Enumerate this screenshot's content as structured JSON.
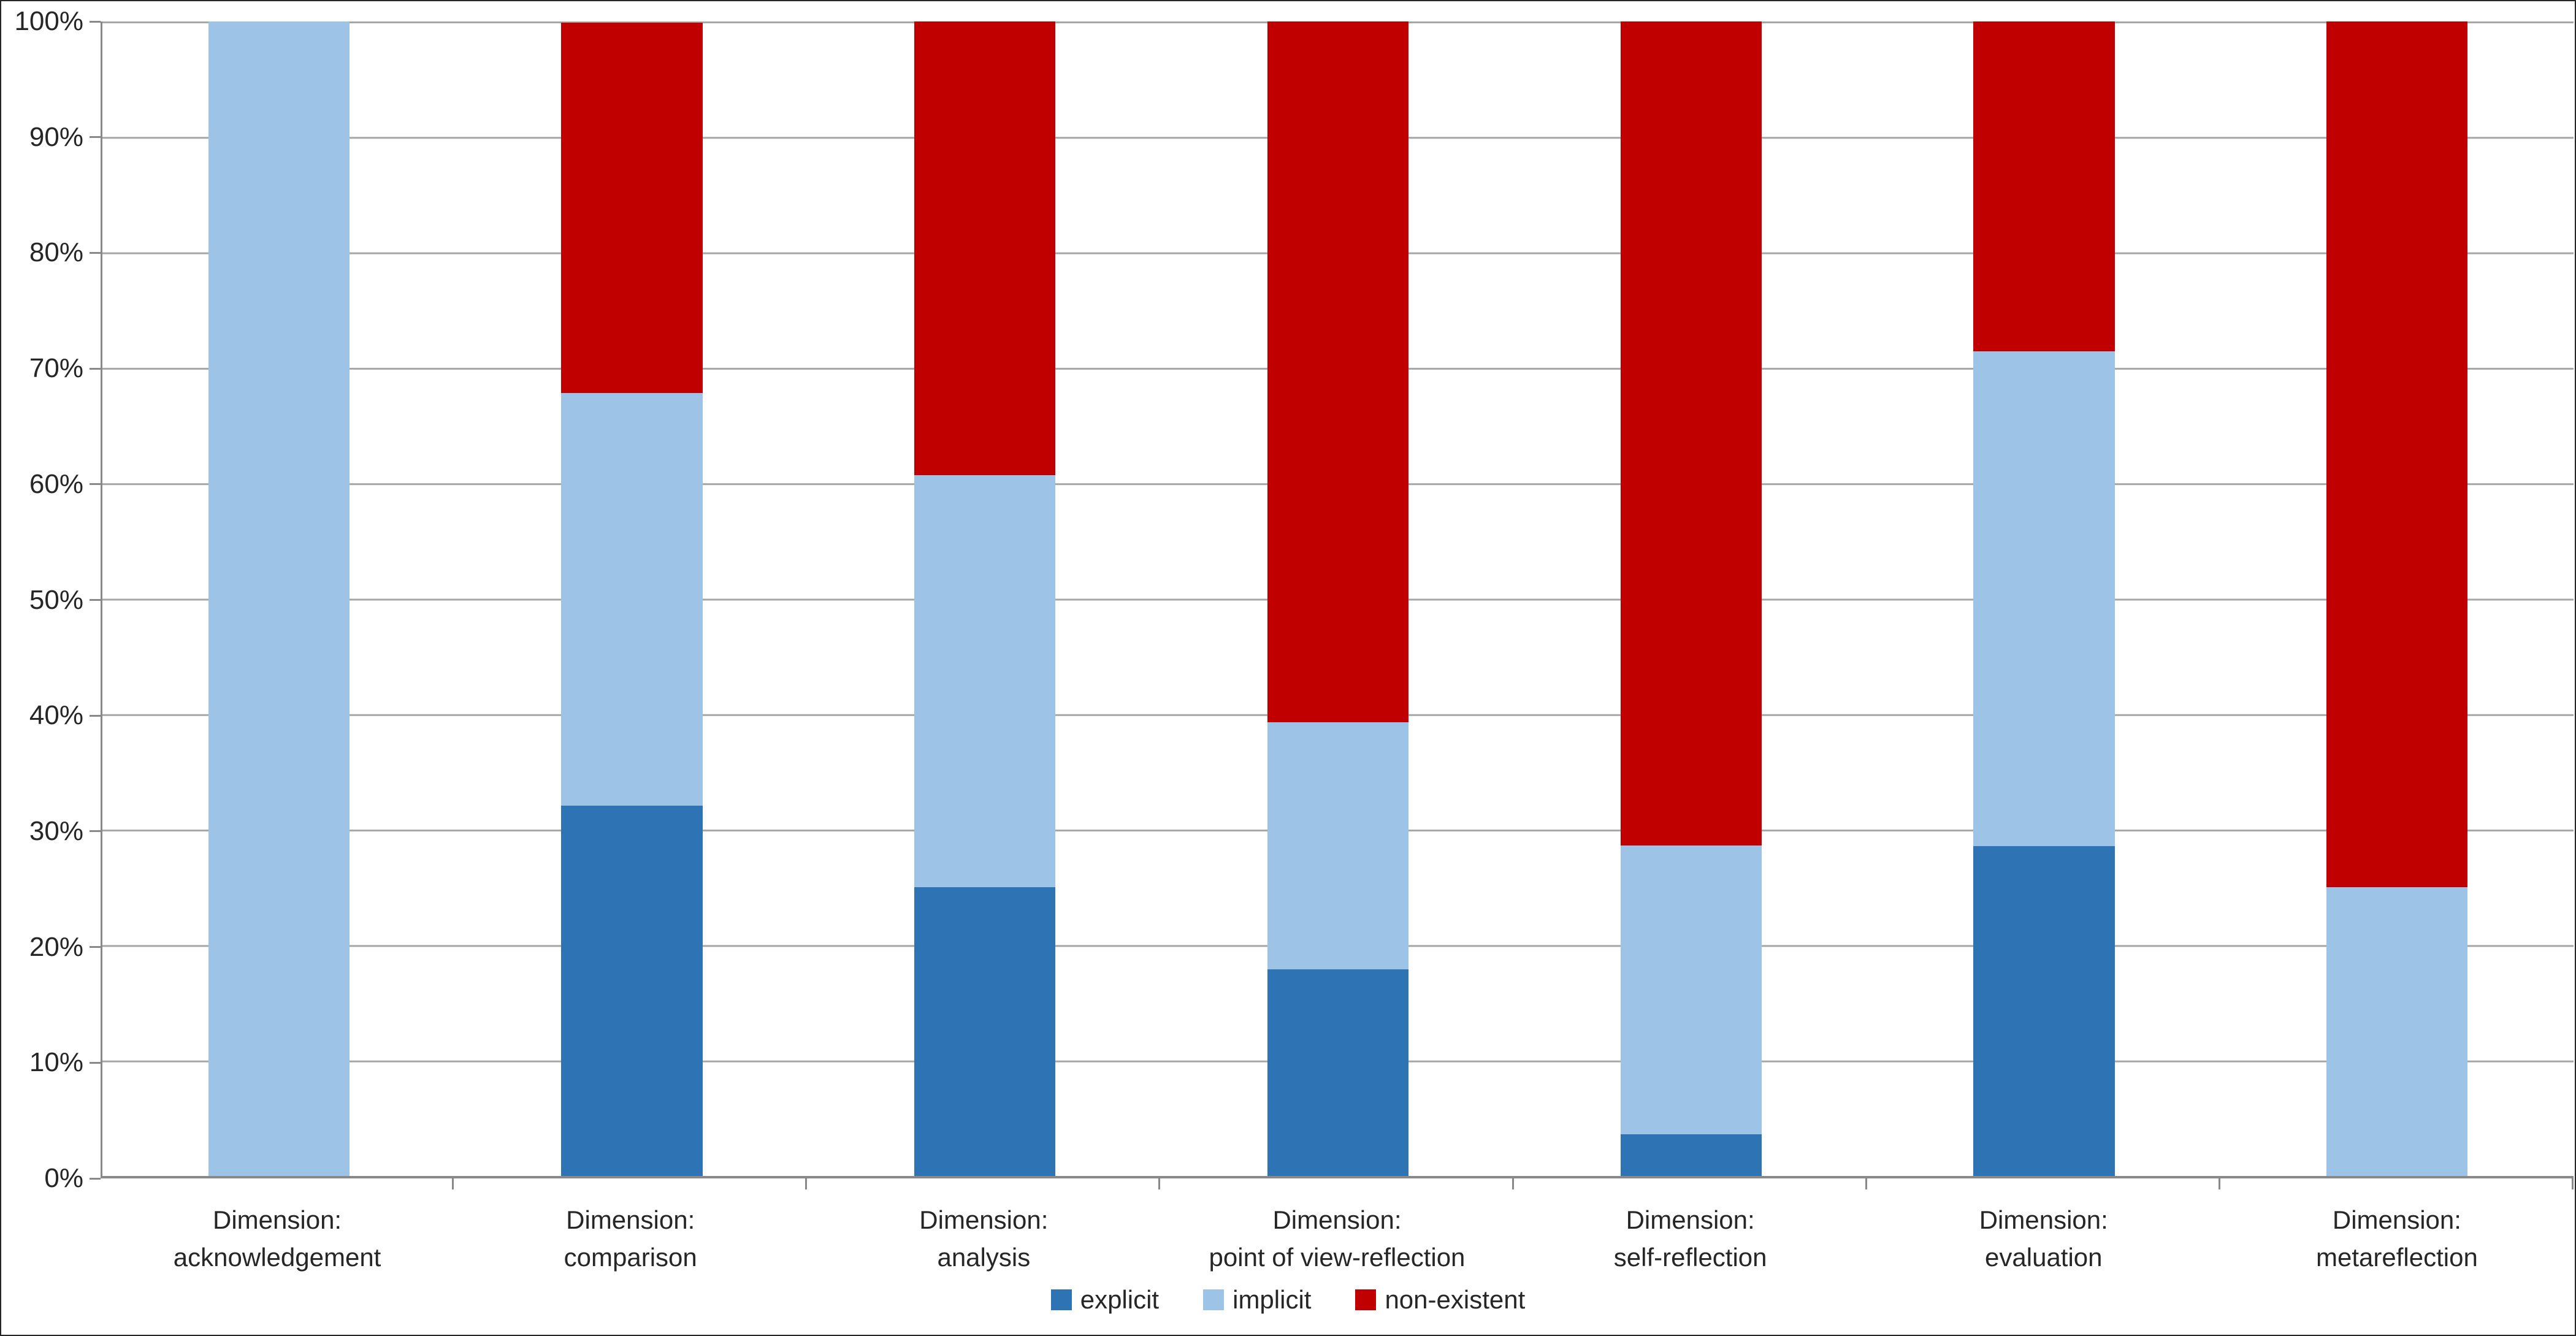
{
  "chart_data": {
    "type": "bar",
    "subtype": "100-percent-stacked-column",
    "title": "",
    "xlabel": "",
    "ylabel": "",
    "ylim": [
      0,
      100
    ],
    "grid": true,
    "legend_position": "bottom",
    "y_ticks": [
      "100%",
      "90%",
      "80%",
      "70%",
      "60%",
      "50%",
      "40%",
      "30%",
      "20%",
      "10%",
      "0%"
    ],
    "categories": [
      {
        "line1": "Dimension:",
        "line2": "acknowledgement"
      },
      {
        "line1": "Dimension:",
        "line2": "comparison"
      },
      {
        "line1": "Dimension:",
        "line2": "analysis"
      },
      {
        "line1": "Dimension:",
        "line2": "point of view-reflection"
      },
      {
        "line1": "Dimension:",
        "line2": "self-reflection"
      },
      {
        "line1": "Dimension:",
        "line2": "evaluation"
      },
      {
        "line1": "Dimension:",
        "line2": "metareflection"
      }
    ],
    "series": [
      {
        "name": "explicit",
        "color": "#2E74B5",
        "values": [
          0,
          32.1,
          25,
          17.9,
          3.6,
          28.6,
          0
        ]
      },
      {
        "name": "implicit",
        "color": "#9DC3E6",
        "values": [
          100,
          35.7,
          35.7,
          21.4,
          25,
          42.9,
          25
        ]
      },
      {
        "name": "non-existent",
        "color": "#C00000",
        "values": [
          0,
          32.1,
          39.3,
          60.7,
          71.4,
          28.6,
          75
        ]
      }
    ]
  },
  "colors": {
    "gridline": "#A6A6A6",
    "axis": "#898989",
    "text": "#262626",
    "background": "#FFFFFF"
  }
}
